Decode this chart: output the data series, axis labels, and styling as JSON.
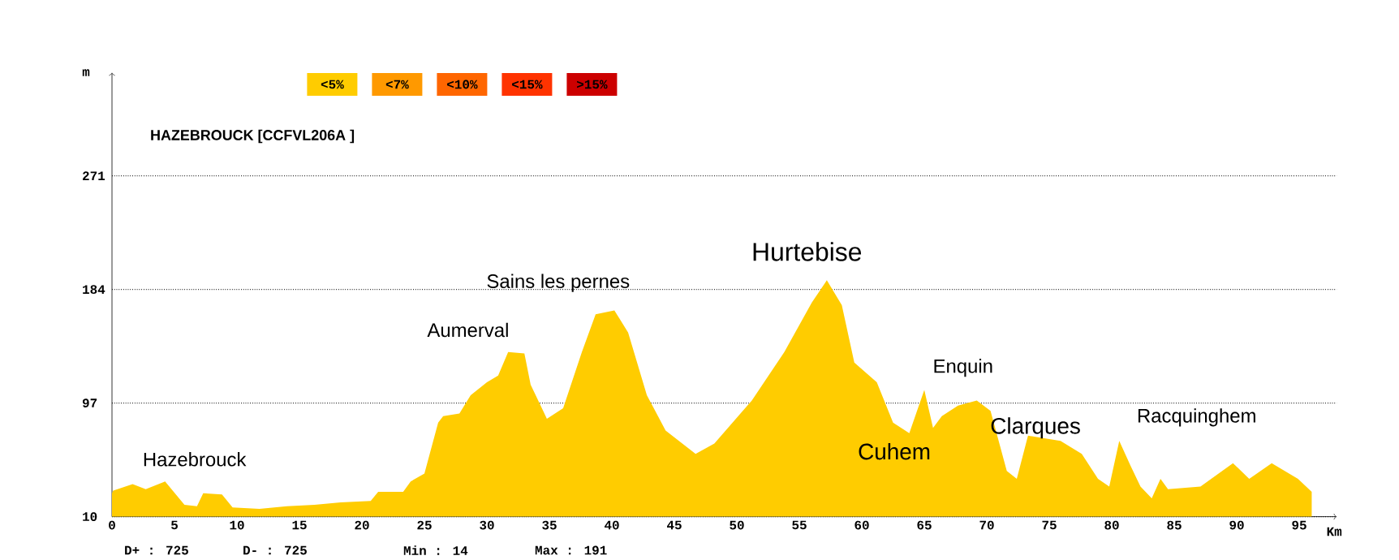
{
  "chart_data": {
    "type": "area",
    "title": "HAZEBROUCK [CCFVL206A ]",
    "xlabel": "Km",
    "ylabel": "m",
    "xlim": [
      0,
      98
    ],
    "ylim": [
      10,
      350
    ],
    "xticks": [
      0,
      5,
      10,
      15,
      20,
      25,
      30,
      35,
      40,
      45,
      50,
      55,
      60,
      65,
      70,
      75,
      80,
      85,
      90,
      95
    ],
    "yticks": [
      10,
      97,
      184,
      271
    ],
    "grid": "y",
    "series": [
      {
        "color": "#ffcc00",
        "x": [
          0,
          0.1,
          1.65,
          2.7,
          4.25,
          5.8,
          6.8,
          7.3,
          8.8,
          9.65,
          11.8,
          14,
          16.2,
          18.3,
          20.7,
          21.3,
          23.3,
          23.9,
          25,
          26.1,
          26.5,
          27.8,
          28.7,
          30,
          30.9,
          31.7,
          33,
          33.5,
          34.8,
          36.1,
          37.6,
          38.7,
          40.2,
          41.3,
          42.8,
          44.3,
          46.7,
          48.2,
          51.2,
          53.8,
          56,
          57.2,
          58.4,
          59.4,
          61.2,
          62.5,
          63.8,
          65,
          65.7,
          66.4,
          67.7,
          69.2,
          70.3,
          71.6,
          72.4,
          73.3,
          75.9,
          77.6,
          78.9,
          79.8,
          80.6,
          81.5,
          82.3,
          83.2,
          83.9,
          84.5,
          87.1,
          89.7,
          91,
          92.8,
          94.9,
          96
        ],
        "values": [
          28,
          30,
          35,
          31,
          37,
          19,
          18,
          28,
          27,
          17,
          16,
          18,
          19,
          21,
          22,
          29,
          29,
          37,
          43,
          82,
          87,
          89,
          103,
          113,
          118,
          136,
          135,
          111,
          85,
          93,
          136,
          165,
          168,
          151,
          103,
          76,
          58,
          66,
          99,
          136,
          174,
          191,
          172,
          128,
          113,
          82,
          74,
          107,
          78,
          87,
          95,
          99,
          91,
          45,
          39,
          72,
          68,
          58,
          39,
          33,
          68,
          49,
          33,
          24,
          39,
          31,
          33,
          51,
          39,
          51,
          39,
          29
        ]
      }
    ],
    "annotations": [
      "<5%",
      "<7%",
      "<10%",
      "<15%",
      ">15%",
      "D+ : 725",
      "D- : 725",
      "Min : 14",
      "Max : 191",
      "Hazebrouck",
      "Aumerval",
      "Sains les pernes",
      "Hurtebise",
      "Cuhem",
      "Enquin",
      "Clarques",
      "Racquinghem"
    ]
  }
}
